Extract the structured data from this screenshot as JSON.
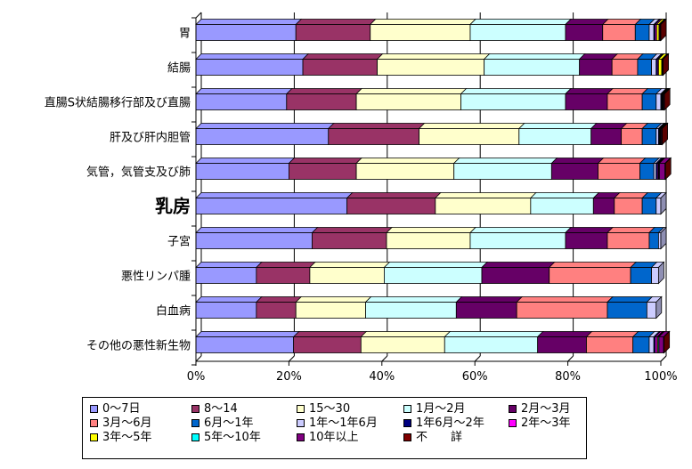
{
  "chart_data": {
    "type": "bar",
    "orientation": "horizontal",
    "stacked": "percent",
    "title": "",
    "xlabel": "",
    "ylabel": "",
    "xlim": [
      0,
      100
    ],
    "x_ticks": [
      "0%",
      "20%",
      "40%",
      "60%",
      "80%",
      "100%"
    ],
    "grid": true,
    "legend_position": "bottom",
    "categories": [
      "胃",
      "結腸",
      "直腸S状結腸移行部及び直腸",
      "肝及び肝内胆管",
      "気管，気管支及び肺",
      "乳房",
      "子宮",
      "悪性リンパ腫",
      "白血病",
      "その他の悪性新生物"
    ],
    "emphasized_category": "乳房",
    "series": [
      {
        "name": "0～7日",
        "color": "#9999ff",
        "values": [
          21.5,
          23,
          19.5,
          28.5,
          20,
          32.5,
          25,
          13,
          13,
          21
        ]
      },
      {
        "name": "8～14",
        "color": "#993366",
        "values": [
          16,
          16,
          15,
          19.5,
          14.5,
          19,
          16,
          11.5,
          8.5,
          14.5
        ]
      },
      {
        "name": "15～30",
        "color": "#ffffcc",
        "values": [
          21.5,
          23,
          22.5,
          21.5,
          21,
          20.5,
          18,
          16,
          15,
          18
        ]
      },
      {
        "name": "1月～2月",
        "color": "#ccffff",
        "values": [
          20.5,
          20.5,
          22.5,
          15.5,
          21,
          13.5,
          20.5,
          21,
          19.5,
          20
        ]
      },
      {
        "name": "2月～3月",
        "color": "#660066",
        "values": [
          8,
          7,
          9,
          6.5,
          10,
          4.5,
          9,
          14.5,
          13,
          10.5
        ]
      },
      {
        "name": "3月～6月",
        "color": "#ff8080",
        "values": [
          7,
          5.5,
          7.5,
          4.5,
          9,
          6,
          9,
          17.5,
          19.5,
          10
        ]
      },
      {
        "name": "6月～1年",
        "color": "#0066cc",
        "values": [
          3,
          3,
          3,
          3,
          3,
          3,
          2,
          4.5,
          8.5,
          3.5
        ]
      },
      {
        "name": "1年～1年6月",
        "color": "#ccccff",
        "values": [
          1,
          1,
          1,
          0.5,
          0.5,
          1,
          0.5,
          1.5,
          2,
          1
        ]
      },
      {
        "name": "1年6月～2年",
        "color": "#000080",
        "values": [
          0.3,
          0.3,
          0.2,
          0.2,
          0.3,
          0,
          0,
          0,
          0,
          0.3
        ]
      },
      {
        "name": "2年～3年",
        "color": "#ff00ff",
        "values": [
          0.3,
          0.2,
          0.1,
          0.1,
          0.2,
          0,
          0,
          0,
          0,
          0.4
        ]
      },
      {
        "name": "3年～5年",
        "color": "#ffff00",
        "values": [
          0.5,
          0.7,
          0.1,
          0.1,
          0.1,
          0,
          0,
          0,
          0,
          0.2
        ]
      },
      {
        "name": "5年～10年",
        "color": "#00ffff",
        "values": [
          0.1,
          0.1,
          0.1,
          0.1,
          0.1,
          0,
          0,
          0,
          0,
          0.2
        ]
      },
      {
        "name": "10年以上",
        "color": "#800080",
        "values": [
          0.2,
          0.1,
          0.2,
          0.2,
          1.2,
          0,
          0,
          0,
          0,
          1
        ]
      },
      {
        "name": "不　　詳",
        "color": "#800000",
        "values": [
          0.1,
          0.1,
          0.1,
          0.1,
          0.1,
          0,
          0,
          0,
          0,
          0.1
        ]
      }
    ]
  }
}
